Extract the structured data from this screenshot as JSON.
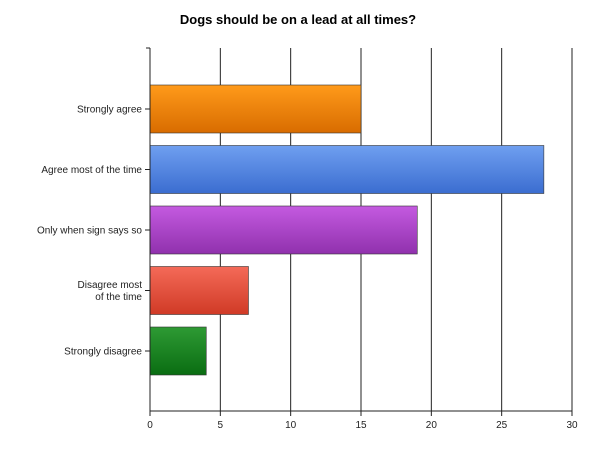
{
  "chart_data": {
    "type": "bar",
    "orientation": "horizontal",
    "title": "Dogs should be on a lead at all times?",
    "xlabel": "",
    "ylabel": "",
    "categories": [
      [
        "Strongly agree"
      ],
      [
        "Agree most of the time"
      ],
      [
        "Only when sign says so"
      ],
      [
        "Disagree most",
        "of the time"
      ],
      [
        "Strongly disagree"
      ]
    ],
    "values": [
      15,
      28,
      19,
      7,
      4
    ],
    "colors": [
      [
        "#ff9a1a",
        "#d86c00"
      ],
      [
        "#6f9ff0",
        "#3b6dd0"
      ],
      [
        "#c45ae0",
        "#9031ad"
      ],
      [
        "#f46a58",
        "#d03a26"
      ],
      [
        "#2e9a34",
        "#0a6d12"
      ]
    ],
    "xlim": [
      0,
      30
    ],
    "x_ticks": [
      0,
      5,
      10,
      15,
      20,
      25,
      30
    ],
    "grid": true,
    "legend": "none"
  }
}
